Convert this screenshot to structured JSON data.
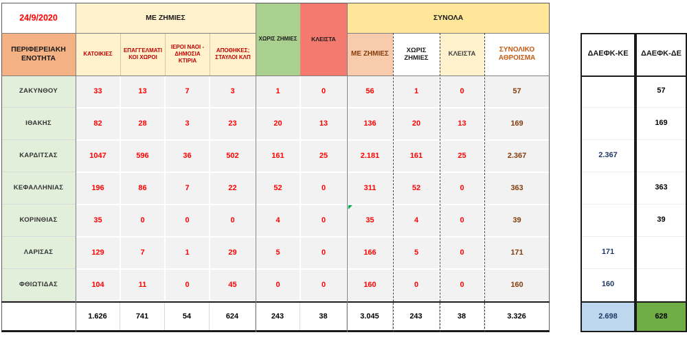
{
  "sheet": {
    "date": "24/9/2020",
    "region_column_header": "ΠΕΡΙΦΕΡΕΙΑΚΗ ΕΝΟΤΗΤΑ",
    "groups": {
      "with_damage": "ΜΕ ΖΗΜΙΕΣ",
      "without_damage": "ΧΩΡΙΣ ΖΗΜΙΕΣ",
      "closed": "ΚΛΕΙΣΤΑ",
      "totals": "ΣΥΝΟΛΑ"
    },
    "damage_subcols": [
      "ΚΑΤΟΙΚΙΕΣ",
      "ΕΠΑΓΓΕΛΜΑΤΙΚΟΙ ΧΩΡΟΙ",
      "ΙΕΡΟΙ ΝΑΟΙ - ΔΗΜΟΣΙΑ ΚΤΙΡΙΑ",
      "ΑΠΟΘΗΚΕΣ; ΣΤΑΥΛΟΙ ΚΛΠ"
    ],
    "totals_subcols": [
      "ΜΕ ΖΗΜΙΕΣ",
      "ΧΩΡΙΣ ΖΗΜΙΕΣ",
      "ΚΛΕΙΣΤΑ",
      "ΣΥΝΟΛΙΚΟ ΑΘΡΟΙΣΜΑ"
    ],
    "daefk_ke_header": "ΔΑΕΦΚ-ΚΕ",
    "daefk_de_header": "ΔΑΕΦΚ-ΔΕ"
  },
  "rows": [
    {
      "region": "ΖΑΚΥΝΘΟΥ",
      "values": [
        "33",
        "13",
        "7",
        "3",
        "1",
        "0",
        "56",
        "1",
        "0",
        "57"
      ],
      "daefk_ke": "",
      "daefk_de": "57"
    },
    {
      "region": "ΙΘΑΚΗΣ",
      "values": [
        "82",
        "28",
        "3",
        "23",
        "20",
        "13",
        "136",
        "20",
        "13",
        "169"
      ],
      "daefk_ke": "",
      "daefk_de": "169"
    },
    {
      "region": "ΚΑΡΔΙΤΣΑΣ",
      "values": [
        "1047",
        "596",
        "36",
        "502",
        "161",
        "25",
        "2.181",
        "161",
        "25",
        "2.367"
      ],
      "daefk_ke": "2.367",
      "daefk_de": ""
    },
    {
      "region": "ΚΕΦΑΛΛΗΝΙΑΣ",
      "values": [
        "196",
        "86",
        "7",
        "22",
        "52",
        "0",
        "311",
        "52",
        "0",
        "363"
      ],
      "daefk_ke": "",
      "daefk_de": "363"
    },
    {
      "region": "ΚΟΡΙΝΘΙΑΣ",
      "values": [
        "35",
        "0",
        "0",
        "0",
        "4",
        "0",
        "35",
        "4",
        "0",
        "39"
      ],
      "daefk_ke": "",
      "daefk_de": "39"
    },
    {
      "region": "ΛΑΡΙΣΑΣ",
      "values": [
        "129",
        "7",
        "1",
        "29",
        "5",
        "0",
        "166",
        "5",
        "0",
        "171"
      ],
      "daefk_ke": "171",
      "daefk_de": ""
    },
    {
      "region": "ΦΘΙΩΤΙΔΑΣ",
      "values": [
        "104",
        "11",
        "0",
        "45",
        "0",
        "0",
        "160",
        "0",
        "0",
        "160"
      ],
      "daefk_ke": "160",
      "daefk_de": ""
    }
  ],
  "totals_row": {
    "values": [
      "1.626",
      "741",
      "54",
      "624",
      "243",
      "38",
      "3.045",
      "243",
      "38",
      "3.326"
    ],
    "daefk_ke": "2.698",
    "daefk_de": "628"
  },
  "icons": {
    "comment_marker": "green-corner-triangle"
  },
  "colors": {
    "pale_yellow": "#FFF2CC",
    "gold": "#FFE699",
    "orange": "#F4B183",
    "peach": "#F8CBAD",
    "green_header": "#A9D08E",
    "salmon": "#F4796E",
    "row_label_green": "#E2EFDA",
    "cell_gray": "#F2F2F2",
    "total_blue": "#BDD7EE",
    "total_green": "#70AD47",
    "number_red": "#FF0000",
    "sum_brown": "#843C0C",
    "daefk_navy": "#1F3864"
  }
}
